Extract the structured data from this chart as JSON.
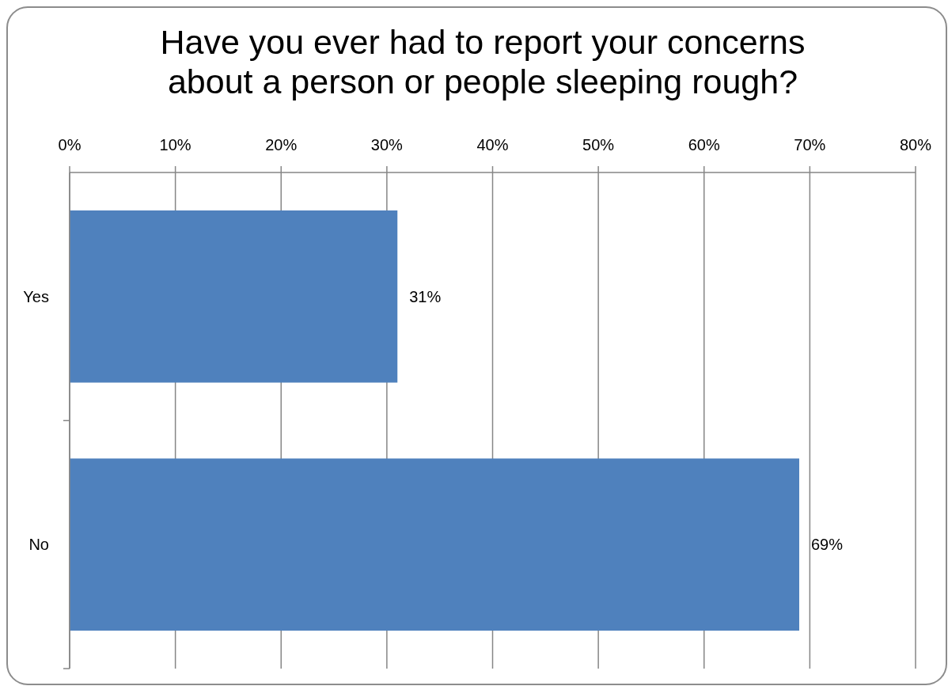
{
  "chart_data": {
    "type": "bar",
    "orientation": "horizontal",
    "title": "Have you ever had to report your concerns about a person or people sleeping rough?",
    "categories": [
      "Yes",
      "No"
    ],
    "values": [
      31,
      69
    ],
    "color": "#4f81bd",
    "value_labels": [
      "31%",
      "69%"
    ],
    "xlim": [
      0,
      80
    ],
    "xticks": [
      {
        "value": 0,
        "label": "0%"
      },
      {
        "value": 10,
        "label": "10%"
      },
      {
        "value": 20,
        "label": "20%"
      },
      {
        "value": 30,
        "label": "30%"
      },
      {
        "value": 40,
        "label": "40%"
      },
      {
        "value": 50,
        "label": "50%"
      },
      {
        "value": 60,
        "label": "60%"
      },
      {
        "value": 70,
        "label": "70%"
      },
      {
        "value": 80,
        "label": "80%"
      }
    ],
    "grid": "x"
  }
}
